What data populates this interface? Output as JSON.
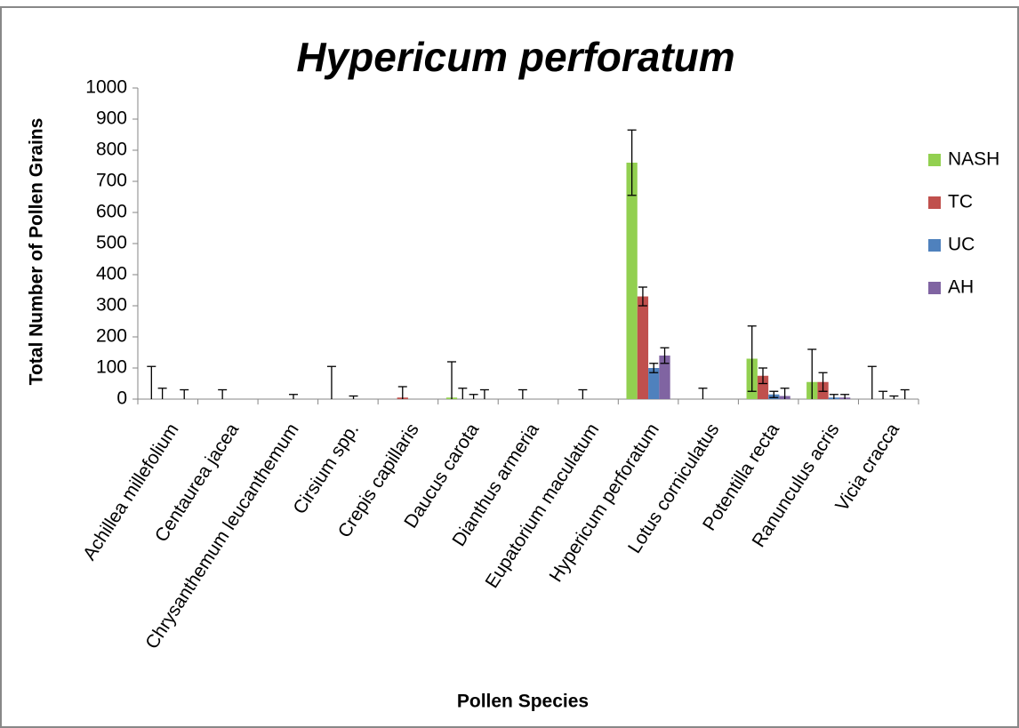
{
  "chart_data": {
    "type": "bar",
    "title": "Hypericum perforatum",
    "xlabel": "Pollen Species",
    "ylabel": "Total Number of Pollen Grains",
    "categories": [
      "Achillea millefolium",
      "Centaurea jacea",
      "Chrysanthemum leucanthemum",
      "Cirsium spp.",
      "Crepis capillaris",
      "Daucus carota",
      "Dianthus armeria",
      "Eupatorium maculatum",
      "Hypericum perforatum",
      "Lotus corniculatus",
      "Potentilla recta",
      "Ranunculus acris",
      "Vicia cracca"
    ],
    "series": [
      {
        "name": "NASH",
        "color": "#92d050",
        "values": [
          0,
          0,
          0,
          0,
          0,
          5,
          0,
          0,
          760,
          0,
          130,
          55,
          0
        ],
        "errors": [
          105,
          0,
          0,
          105,
          0,
          115,
          0,
          0,
          105,
          0,
          105,
          105,
          105
        ]
      },
      {
        "name": "TC",
        "color": "#c0504d",
        "values": [
          0,
          0,
          0,
          0,
          5,
          0,
          0,
          0,
          330,
          0,
          75,
          55,
          0
        ],
        "errors": [
          35,
          30,
          0,
          0,
          35,
          35,
          30,
          30,
          30,
          35,
          25,
          30,
          25
        ]
      },
      {
        "name": "UC",
        "color": "#4f81bd",
        "values": [
          0,
          0,
          0,
          0,
          0,
          0,
          0,
          0,
          100,
          0,
          15,
          5,
          0
        ],
        "errors": [
          0,
          0,
          15,
          10,
          0,
          15,
          0,
          0,
          15,
          0,
          10,
          10,
          10
        ]
      },
      {
        "name": "AH",
        "color": "#8064a2",
        "values": [
          0,
          0,
          0,
          0,
          0,
          0,
          0,
          0,
          140,
          0,
          10,
          5,
          0
        ],
        "errors": [
          30,
          0,
          0,
          0,
          0,
          30,
          0,
          0,
          25,
          0,
          25,
          10,
          30
        ]
      }
    ],
    "ylim": [
      0,
      1000
    ],
    "yticks": [
      0,
      100,
      200,
      300,
      400,
      500,
      600,
      700,
      800,
      900,
      1000
    ],
    "legend": "right"
  }
}
